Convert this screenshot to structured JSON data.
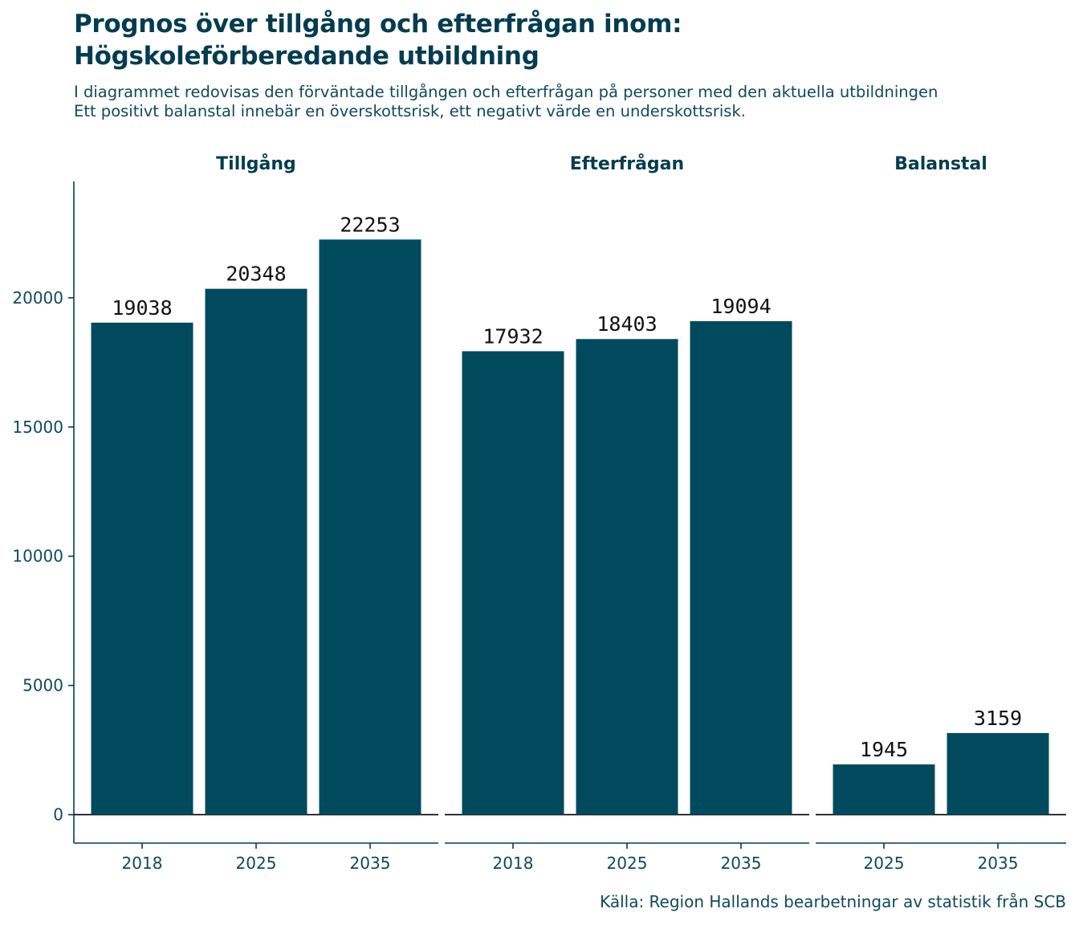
{
  "title_line1": "Prognos över tillgång och efterfrågan inom:",
  "title_line2": "Högskoleförberedande utbildning",
  "subtitle_line1": "I diagrammet redovisas den förväntade tillgången och efterfrågan på personer med den aktuella utbildningen",
  "subtitle_line2": "Ett positivt balanstal innebär en överskottsrisk, ett negativt värde en underskottsrisk.",
  "caption": "Källa: Region Hallands bearbetningar av statistik från SCB",
  "colors": {
    "bar": "#014a5d",
    "text": "#023c50",
    "axis": "#023c50"
  },
  "chart_data": {
    "type": "bar",
    "ylim": [
      -1100,
      24500
    ],
    "yticks": [
      0,
      5000,
      10000,
      15000,
      20000
    ],
    "grid": false,
    "facets": [
      {
        "name": "Tillgång",
        "categories": [
          "2018",
          "2025",
          "2035"
        ],
        "values": [
          19038,
          20348,
          22253
        ]
      },
      {
        "name": "Efterfrågan",
        "categories": [
          "2018",
          "2025",
          "2035"
        ],
        "values": [
          17932,
          18403,
          19094
        ]
      },
      {
        "name": "Balanstal",
        "categories": [
          "2025",
          "2035"
        ],
        "values": [
          1945,
          3159
        ]
      }
    ]
  }
}
